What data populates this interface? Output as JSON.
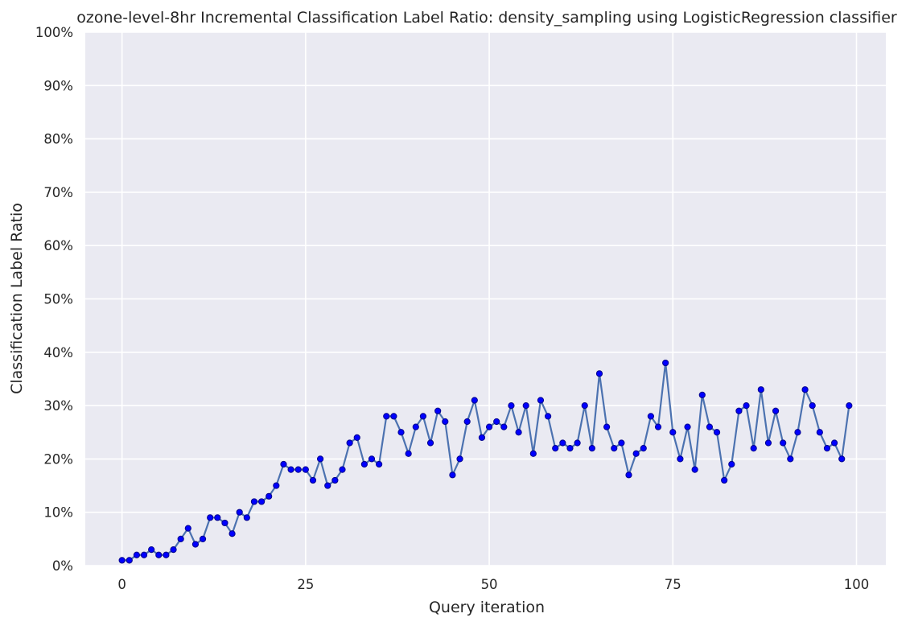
{
  "chart_data": {
    "type": "line",
    "title": "ozone-level-8hr Incremental Classification Label Ratio: density_sampling using LogisticRegression classifier",
    "xlabel": "Query iteration",
    "ylabel": "Classification Label Ratio",
    "xlim": [
      -5,
      104
    ],
    "ylim": [
      0,
      1
    ],
    "grid": true,
    "x_ticks": [
      0,
      25,
      50,
      75,
      100
    ],
    "x_tick_labels": [
      "0",
      "25",
      "50",
      "75",
      "100"
    ],
    "y_ticks": [
      0,
      0.1,
      0.2,
      0.3,
      0.4,
      0.5,
      0.6,
      0.7,
      0.8,
      0.9,
      1.0
    ],
    "y_tick_labels": [
      "0%",
      "10%",
      "20%",
      "30%",
      "40%",
      "50%",
      "60%",
      "70%",
      "80%",
      "90%",
      "100%"
    ],
    "colors": {
      "background": "#eaeaf2",
      "grid": "#ffffff",
      "line": "#4c72b0",
      "marker": "#0000ff",
      "marker_edge": "#00008b"
    },
    "series": [
      {
        "x": [
          0,
          1,
          2,
          3,
          4,
          5,
          6,
          7,
          8,
          9,
          10,
          11,
          12,
          13,
          14,
          15,
          16,
          17,
          18,
          19,
          20,
          21,
          22,
          23,
          24,
          25,
          26,
          27,
          28,
          29,
          30,
          31,
          32,
          33,
          34,
          35,
          36,
          37,
          38,
          39,
          40,
          41,
          42,
          43,
          44,
          45,
          46,
          47,
          48,
          49,
          50,
          51,
          52,
          53,
          54,
          55,
          56,
          57,
          58,
          59,
          60,
          61,
          62,
          63,
          64,
          65,
          66,
          67,
          68,
          69,
          70,
          71,
          72,
          73,
          74,
          75,
          76,
          77,
          78,
          79,
          80,
          81,
          82,
          83,
          84,
          85,
          86,
          87,
          88,
          89,
          90,
          91,
          92,
          93,
          94,
          95,
          96,
          97,
          98,
          99
        ],
        "values": [
          0.01,
          0.01,
          0.02,
          0.02,
          0.03,
          0.02,
          0.02,
          0.03,
          0.05,
          0.07,
          0.04,
          0.05,
          0.09,
          0.09,
          0.08,
          0.06,
          0.1,
          0.09,
          0.12,
          0.12,
          0.13,
          0.15,
          0.19,
          0.18,
          0.18,
          0.18,
          0.16,
          0.2,
          0.15,
          0.16,
          0.18,
          0.23,
          0.24,
          0.19,
          0.2,
          0.19,
          0.28,
          0.28,
          0.25,
          0.21,
          0.26,
          0.28,
          0.23,
          0.29,
          0.27,
          0.17,
          0.2,
          0.27,
          0.31,
          0.24,
          0.26,
          0.27,
          0.26,
          0.3,
          0.25,
          0.3,
          0.21,
          0.31,
          0.28,
          0.22,
          0.23,
          0.22,
          0.23,
          0.3,
          0.22,
          0.36,
          0.26,
          0.22,
          0.23,
          0.17,
          0.21,
          0.22,
          0.28,
          0.26,
          0.38,
          0.25,
          0.2,
          0.26,
          0.18,
          0.32,
          0.26,
          0.25,
          0.16,
          0.19,
          0.29,
          0.3,
          0.22,
          0.33,
          0.23,
          0.29,
          0.23,
          0.2,
          0.25,
          0.33,
          0.3,
          0.25,
          0.22,
          0.23,
          0.2,
          0.3
        ]
      }
    ]
  }
}
